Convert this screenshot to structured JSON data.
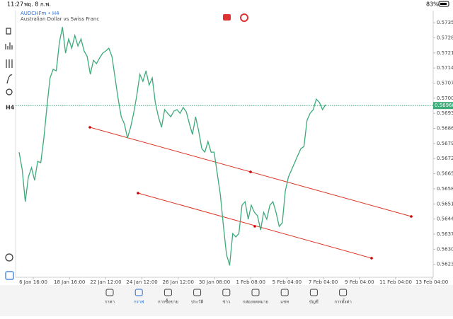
{
  "status_bar": {
    "time": "11:27",
    "date": "พฤ. 8 ก.พ.",
    "battery": "83%"
  },
  "chart": {
    "symbol": "AUDCHFm • H4",
    "description": "Australian Dollar vs Swiss Franc",
    "timeframe": "H4",
    "ylim": [
      0.5617,
      0.57406
    ],
    "yticks": [
      0.5735,
      0.5728,
      0.5721,
      0.5714,
      0.5707,
      0.57,
      0.5693,
      0.5686,
      0.5679,
      0.5672,
      0.5665,
      0.5658,
      0.5651,
      0.5644,
      0.5637,
      0.563,
      0.5623
    ],
    "ytick_labels": [
      "0.57350",
      "0.57280",
      "0.57210",
      "0.57140",
      "0.57070",
      "0.57000",
      "0.56930",
      "0.56860",
      "0.56790",
      "0.56720",
      "0.56650",
      "0.56580",
      "0.56510",
      "0.56440",
      "0.56370",
      "0.56300",
      "0.56230"
    ],
    "xticks": [
      "6 Jan 16:00",
      "18 Jan 16:00",
      "22 Jan 12:00",
      "24 Jan 12:00",
      "26 Jan 12:00",
      "30 Jan 08:00",
      "1 Feb 08:00",
      "5 Feb 04:00",
      "7 Feb 04:00",
      "9 Feb 04:00",
      "11 Feb 04:00",
      "13 Feb 04:00"
    ],
    "current_price": {
      "value": 0.56966,
      "label": "0.56966"
    },
    "color": "#3daa7a",
    "values": [
      0.5675,
      0.56668,
      0.5652,
      0.56635,
      0.56678,
      0.56619,
      0.56707,
      0.56701,
      0.56816,
      0.56963,
      0.57094,
      0.57134,
      0.57127,
      0.57258,
      0.5733,
      0.57209,
      0.57275,
      0.57232,
      0.57291,
      0.57242,
      0.57275,
      0.57219,
      0.57193,
      0.57111,
      0.57176,
      0.5716,
      0.57186,
      0.57209,
      0.57219,
      0.57232,
      0.57193,
      0.57094,
      0.56996,
      0.56914,
      0.56881,
      0.56816,
      0.56865,
      0.5693,
      0.57012,
      0.57111,
      0.57078,
      0.57127,
      0.57061,
      0.57094,
      0.5698,
      0.56914,
      0.56865,
      0.56947,
      0.5693,
      0.56914,
      0.5694,
      0.56947,
      0.5693,
      0.56957,
      0.56937,
      0.56881,
      0.56832,
      0.56914,
      0.56848,
      0.56766,
      0.5675,
      0.56799,
      0.5675,
      0.5675,
      0.56652,
      0.56553,
      0.56406,
      0.56275,
      0.56225,
      0.56373,
      0.56357,
      0.56373,
      0.56504,
      0.5652,
      0.56439,
      0.56504,
      0.56471,
      0.56455,
      0.56389,
      0.56471,
      0.56439,
      0.56504,
      0.5652,
      0.56471,
      0.56406,
      0.56422,
      0.5657,
      0.56635,
      0.56668,
      0.56701,
      0.56734,
      0.56766,
      0.56776,
      0.56898,
      0.5693,
      0.56947,
      0.56996,
      0.5698,
      0.56947,
      0.5697
    ]
  },
  "nav": [
    "ราคา",
    "กราฟ",
    "การซื้อขาย",
    "ประวัติ",
    "ข่าว",
    "กล่องจดหมาย",
    "แชท",
    "บัญชี",
    "การตั้งค่า"
  ]
}
